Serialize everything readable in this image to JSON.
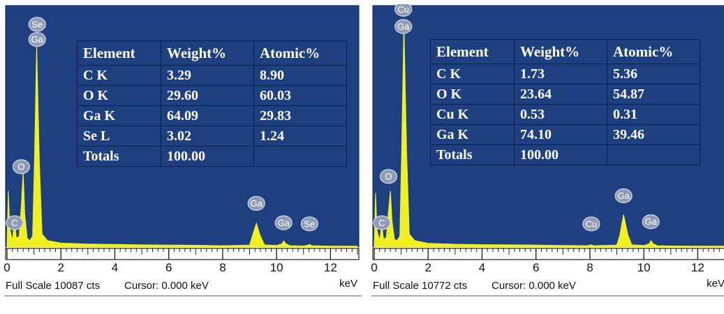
{
  "chart_data": [
    {
      "type": "area",
      "title": "",
      "xlabel": "keV",
      "ylabel": "",
      "xlim": [
        0,
        13
      ],
      "x_ticks": [
        "0",
        "2",
        "4",
        "6",
        "8",
        "10",
        "12"
      ],
      "unit_label": "keV",
      "full_scale_text": "Full Scale 10087 cts",
      "cursor_text": "Cursor: 0.000 keV",
      "spectrum": [
        [
          0.0,
          0
        ],
        [
          0.05,
          2600
        ],
        [
          0.1,
          900
        ],
        [
          0.2,
          300
        ],
        [
          0.28,
          1200
        ],
        [
          0.35,
          400
        ],
        [
          0.45,
          500
        ],
        [
          0.53,
          1900
        ],
        [
          0.6,
          3500
        ],
        [
          0.66,
          1500
        ],
        [
          0.75,
          400
        ],
        [
          0.85,
          300
        ],
        [
          0.95,
          500
        ],
        [
          1.02,
          4000
        ],
        [
          1.1,
          9400
        ],
        [
          1.2,
          4000
        ],
        [
          1.3,
          600
        ],
        [
          1.5,
          300
        ],
        [
          2,
          180
        ],
        [
          3,
          140
        ],
        [
          4,
          120
        ],
        [
          5,
          100
        ],
        [
          6,
          90
        ],
        [
          7,
          80
        ],
        [
          8,
          60
        ],
        [
          9,
          90
        ],
        [
          9.1,
          500
        ],
        [
          9.25,
          1100
        ],
        [
          9.4,
          500
        ],
        [
          9.55,
          100
        ],
        [
          10,
          70
        ],
        [
          10.2,
          150
        ],
        [
          10.26,
          280
        ],
        [
          10.35,
          150
        ],
        [
          10.5,
          60
        ],
        [
          11,
          50
        ],
        [
          11.15,
          80
        ],
        [
          11.22,
          120
        ],
        [
          11.3,
          60
        ],
        [
          12,
          40
        ],
        [
          13,
          40
        ]
      ],
      "peaks": [
        {
          "label": "Se",
          "x": 1.12,
          "y": 10000
        },
        {
          "label": "Ga",
          "x": 1.12,
          "y": 9300
        },
        {
          "label": "O",
          "x": 0.53,
          "y": 3400
        },
        {
          "label": "C",
          "x": 0.28,
          "y": 800
        },
        {
          "label": "Ga",
          "x": 9.25,
          "y": 1700
        },
        {
          "label": "Ga",
          "x": 10.26,
          "y": 800
        },
        {
          "label": "Se",
          "x": 11.22,
          "y": 750
        }
      ],
      "table": {
        "headers": [
          "Element",
          "Weight%",
          "Atomic%"
        ],
        "rows": [
          [
            "C K",
            "3.29",
            "8.90"
          ],
          [
            "O K",
            "29.60",
            "60.03"
          ],
          [
            "Ga K",
            "64.09",
            "29.83"
          ],
          [
            "Se L",
            "3.02",
            "1.24"
          ],
          [
            "Totals",
            "100.00",
            ""
          ]
        ]
      }
    },
    {
      "type": "area",
      "title": "",
      "xlabel": "keV",
      "ylabel": "",
      "xlim": [
        0,
        13
      ],
      "x_ticks": [
        "0",
        "2",
        "4",
        "6",
        "8",
        "10",
        "12"
      ],
      "unit_label": "keV",
      "full_scale_text": "Full Scale 10772 cts",
      "cursor_text": "Cursor: 0.000 keV",
      "spectrum": [
        [
          0.0,
          0
        ],
        [
          0.05,
          2500
        ],
        [
          0.1,
          800
        ],
        [
          0.2,
          300
        ],
        [
          0.28,
          1000
        ],
        [
          0.35,
          350
        ],
        [
          0.45,
          450
        ],
        [
          0.53,
          1700
        ],
        [
          0.6,
          2600
        ],
        [
          0.66,
          1200
        ],
        [
          0.75,
          350
        ],
        [
          0.85,
          300
        ],
        [
          0.95,
          500
        ],
        [
          1.02,
          4500
        ],
        [
          1.1,
          10400
        ],
        [
          1.2,
          4500
        ],
        [
          1.3,
          600
        ],
        [
          1.5,
          300
        ],
        [
          2,
          170
        ],
        [
          3,
          130
        ],
        [
          4,
          110
        ],
        [
          5,
          100
        ],
        [
          6,
          90
        ],
        [
          7,
          70
        ],
        [
          7.9,
          60
        ],
        [
          8.05,
          100
        ],
        [
          8.15,
          60
        ],
        [
          9,
          90
        ],
        [
          9.1,
          500
        ],
        [
          9.25,
          1500
        ],
        [
          9.4,
          600
        ],
        [
          9.55,
          100
        ],
        [
          10,
          70
        ],
        [
          10.2,
          150
        ],
        [
          10.26,
          300
        ],
        [
          10.35,
          150
        ],
        [
          10.5,
          60
        ],
        [
          11,
          50
        ],
        [
          12,
          40
        ],
        [
          13,
          40
        ]
      ],
      "peaks": [
        {
          "label": "Cu",
          "x": 1.08,
          "y": 10700
        },
        {
          "label": "Ga",
          "x": 1.08,
          "y": 9900
        },
        {
          "label": "O",
          "x": 0.53,
          "y": 2950
        },
        {
          "label": "C",
          "x": 0.28,
          "y": 800
        },
        {
          "label": "Cu",
          "x": 8.05,
          "y": 750
        },
        {
          "label": "Ga",
          "x": 9.25,
          "y": 2050
        },
        {
          "label": "Ga",
          "x": 10.26,
          "y": 850
        }
      ],
      "table": {
        "headers": [
          "Element",
          "Weight%",
          "Atomic%"
        ],
        "rows": [
          [
            "C K",
            "1.73",
            "5.36"
          ],
          [
            "O K",
            "23.64",
            "54.87"
          ],
          [
            "Cu K",
            "0.53",
            "0.31"
          ],
          [
            "Ga K",
            "74.10",
            "39.46"
          ],
          [
            "Totals",
            "100.00",
            ""
          ]
        ]
      }
    }
  ]
}
